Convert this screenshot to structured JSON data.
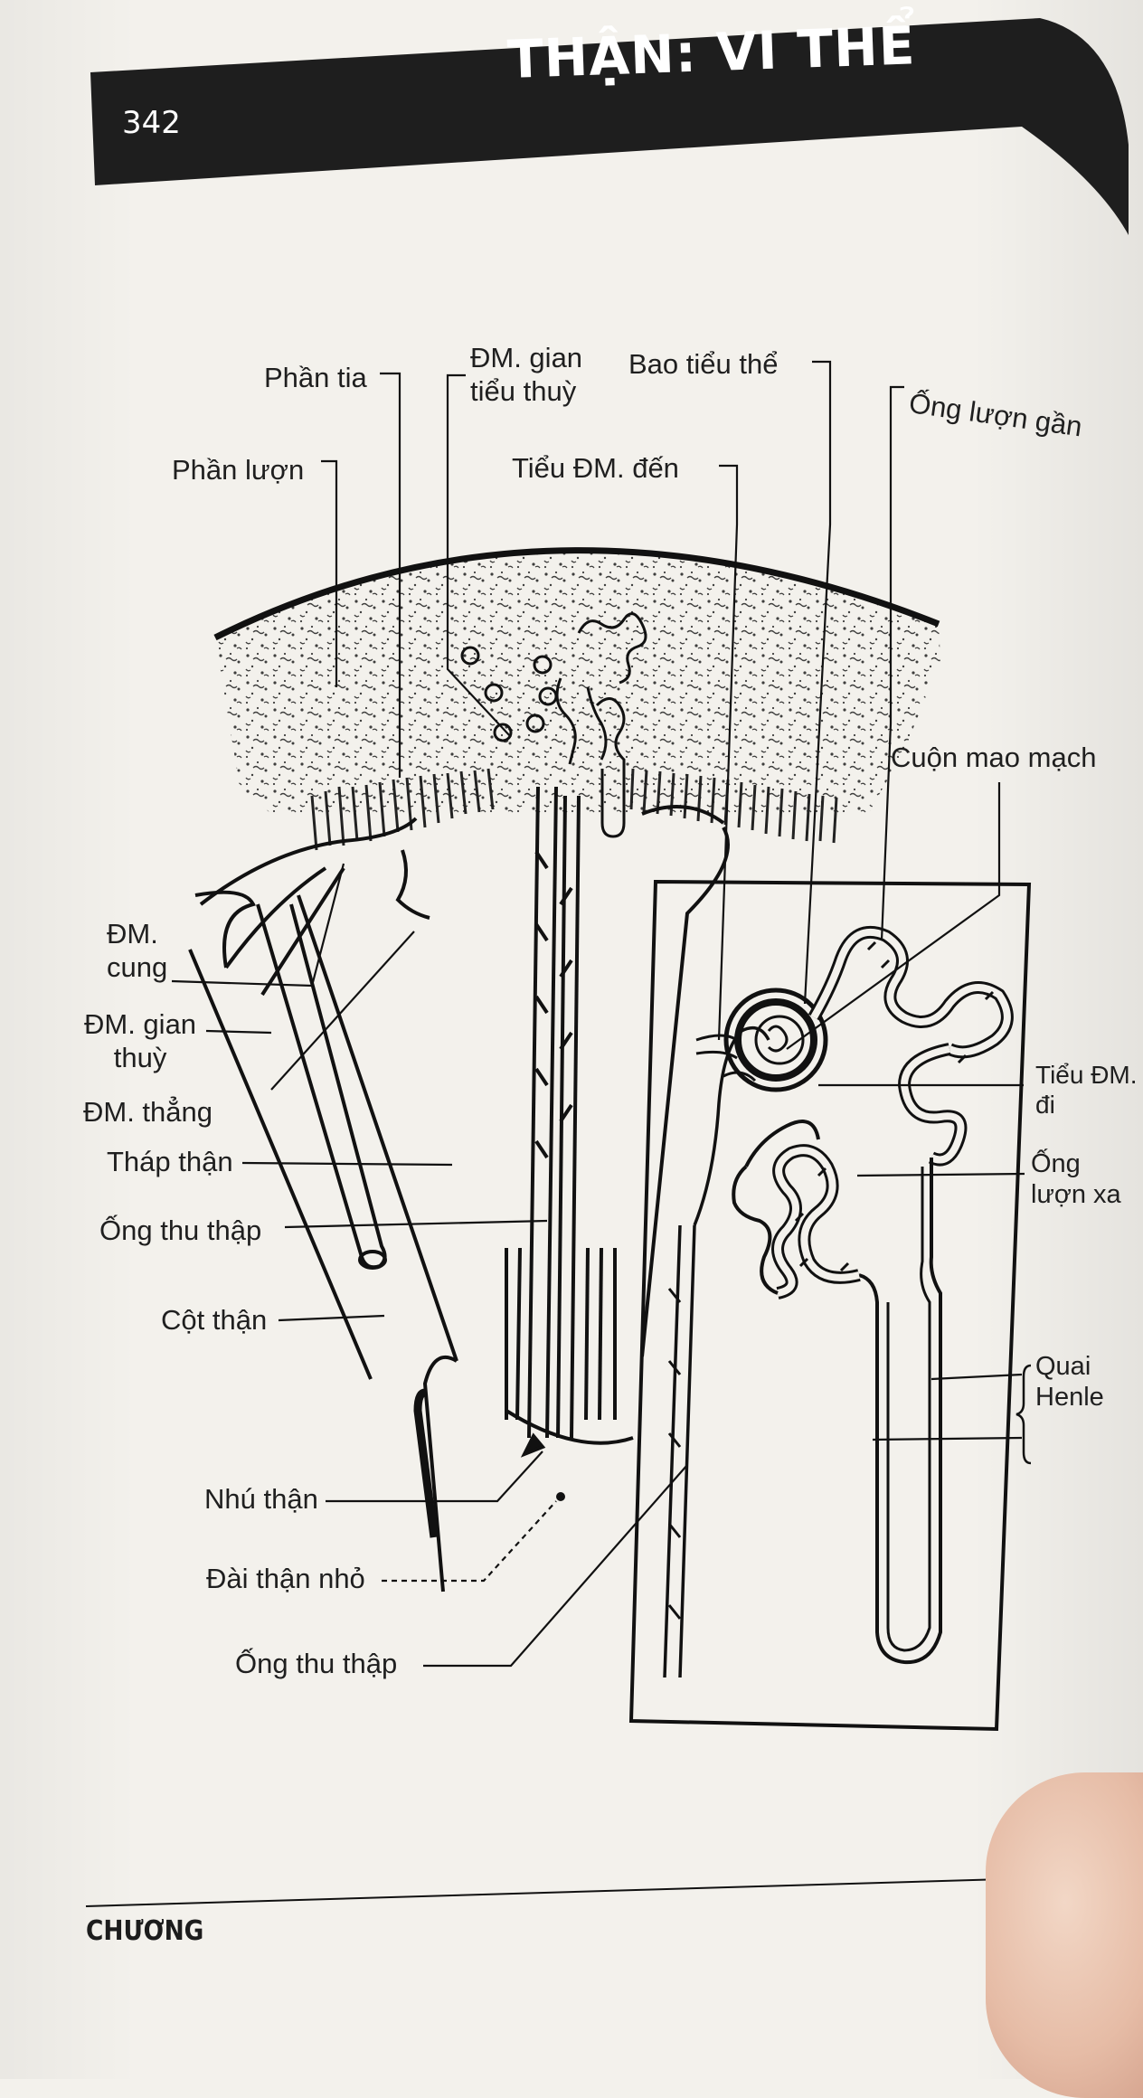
{
  "page": {
    "title": "THẬN: VI THỂ",
    "page_number": "342",
    "footer": "CHƯƠNG"
  },
  "labels": {
    "phan_tia": "Phần tia",
    "dm_gian_tieu_thuy": "ĐM. gian\ntiểu thuỳ",
    "bao_tieu_the": "Bao tiểu thể",
    "ong_luon_gan": "Ống lượn gần",
    "phan_luon": "Phần lượn",
    "tieu_dm_den": "Tiểu ĐM. đến",
    "cuon_mao_mach": "Cuộn mao mạch",
    "dm_cung": "ĐM.\ncung",
    "dm_gian_thuy": "ĐM. gian\nthuỳ",
    "dm_thang": "ĐM. thẳng",
    "thap_than": "Tháp thận",
    "ong_thu_thap_1": "Ống thu thập",
    "cot_than": "Cột thận",
    "tieu_dm_di": "Tiểu ĐM.\nđi",
    "ong_luon_xa": "Ống\nlượn xa",
    "quai_henle": "Quai\nHenle",
    "nhu_than": "Nhú thận",
    "dai_than_nho": "Đài thận nhỏ",
    "ong_thu_thap_2": "Ống thu thập"
  },
  "colors": {
    "header_band": "#1e1e1e",
    "ink": "#1f1f1f",
    "paper": "#f3f1ec"
  }
}
